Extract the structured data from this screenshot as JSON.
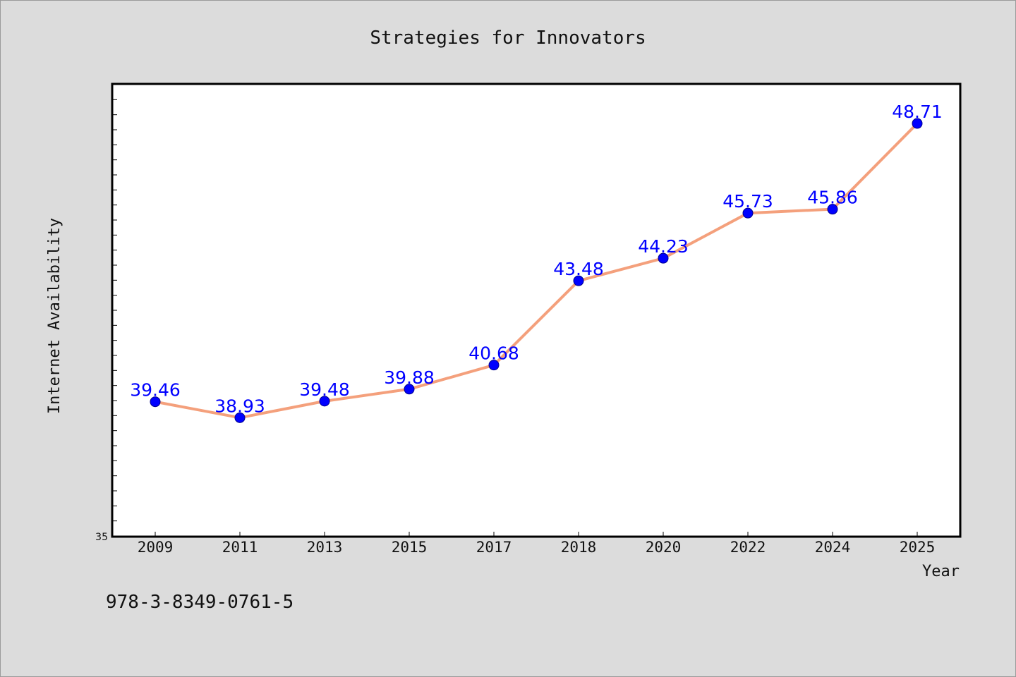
{
  "chart_data": {
    "type": "line",
    "title": "Strategies for Innovators",
    "xlabel": "Year",
    "ylabel": "Internet Availability",
    "categories": [
      "2009",
      "2011",
      "2013",
      "2015",
      "2017",
      "2018",
      "2020",
      "2022",
      "2024",
      "2025"
    ],
    "series": [
      {
        "values": [
          39.46,
          38.93,
          39.48,
          39.88,
          40.68,
          43.48,
          44.23,
          45.73,
          45.86,
          48.71
        ],
        "labels": [
          "39.46",
          "38.93",
          "39.48",
          "39.88",
          "40.68",
          "43.48",
          "44.23",
          "45.73",
          "45.86",
          "48.71"
        ]
      }
    ],
    "ylim": [
      35,
      50
    ],
    "y_tick_labels": [
      "35"
    ],
    "grid": false,
    "legend": "none",
    "colors": {
      "line": "#f4a07c",
      "marker": "#0000ff",
      "label": "#0000ff",
      "background": "#dcdcdc",
      "plot_background": "#ffffff"
    }
  },
  "footnote": "978-3-8349-0761-5"
}
